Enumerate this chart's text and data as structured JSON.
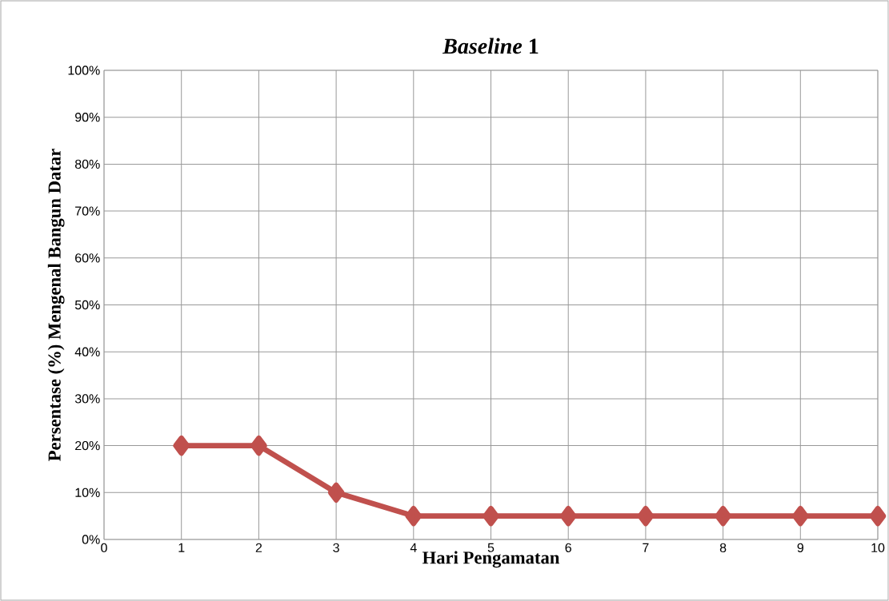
{
  "chart_data": {
    "type": "line",
    "title": "*Baseline* 1",
    "xlabel": "Hari Pengamatan",
    "ylabel": "Persentase (%) Mengenal Bangun Datar",
    "x": [
      1,
      2,
      3,
      4,
      5,
      6,
      7,
      8,
      9,
      10
    ],
    "series": [
      {
        "color": "#c0504d",
        "values": [
          20,
          20,
          10,
          5,
          5,
          5,
          5,
          5,
          5,
          5
        ]
      }
    ],
    "xlim": [
      0,
      10
    ],
    "xticks": [
      0,
      1,
      2,
      3,
      4,
      5,
      6,
      7,
      8,
      9,
      10
    ],
    "ylim": [
      0,
      100
    ],
    "yticks": [
      {
        "value": 0,
        "label": "0%"
      },
      {
        "value": 10,
        "label": "10%"
      },
      {
        "value": 20,
        "label": "20%"
      },
      {
        "value": 30,
        "label": "30%"
      },
      {
        "value": 40,
        "label": "40%"
      },
      {
        "value": 50,
        "label": "50%"
      },
      {
        "value": 60,
        "label": "60%"
      },
      {
        "value": 70,
        "label": "70%"
      },
      {
        "value": 80,
        "label": "80%"
      },
      {
        "value": 90,
        "label": "90%"
      },
      {
        "value": 100,
        "label": "100%"
      }
    ],
    "grid": true,
    "marker": "diamond",
    "line_style": "solid"
  }
}
